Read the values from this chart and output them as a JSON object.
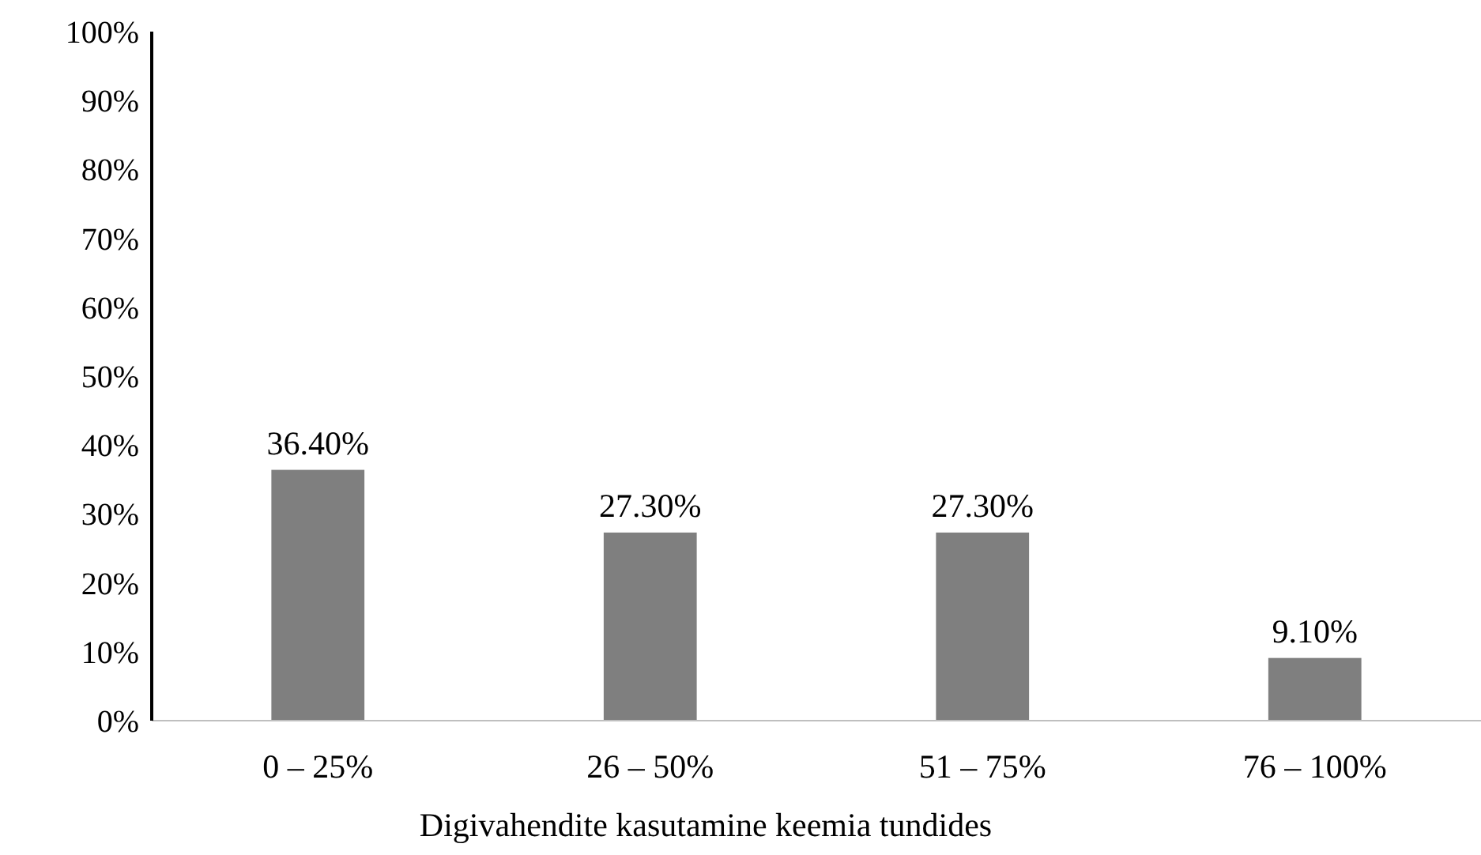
{
  "chart_data": {
    "type": "bar",
    "xlabel": "Digivahendite kasutamine keemia tundides",
    "categories": [
      "0 – 25%",
      "26 – 50%",
      "51 – 75%",
      "76 – 100%"
    ],
    "values": [
      36.4,
      27.3,
      27.3,
      9.1
    ],
    "value_labels": [
      "36.40%",
      "27.30%",
      "27.30%",
      "9.10%"
    ],
    "color": "#7f7f7f",
    "ylim": [
      0,
      100
    ],
    "yticks": [
      {
        "value": 0,
        "label": "0%"
      },
      {
        "value": 10,
        "label": "10%"
      },
      {
        "value": 20,
        "label": "20%"
      },
      {
        "value": 30,
        "label": "30%"
      },
      {
        "value": 40,
        "label": "40%"
      },
      {
        "value": 50,
        "label": "50%"
      },
      {
        "value": 60,
        "label": "60%"
      },
      {
        "value": 70,
        "label": "70%"
      },
      {
        "value": 80,
        "label": "80%"
      },
      {
        "value": 90,
        "label": "90%"
      },
      {
        "value": 100,
        "label": "100%"
      }
    ],
    "grid": false
  }
}
